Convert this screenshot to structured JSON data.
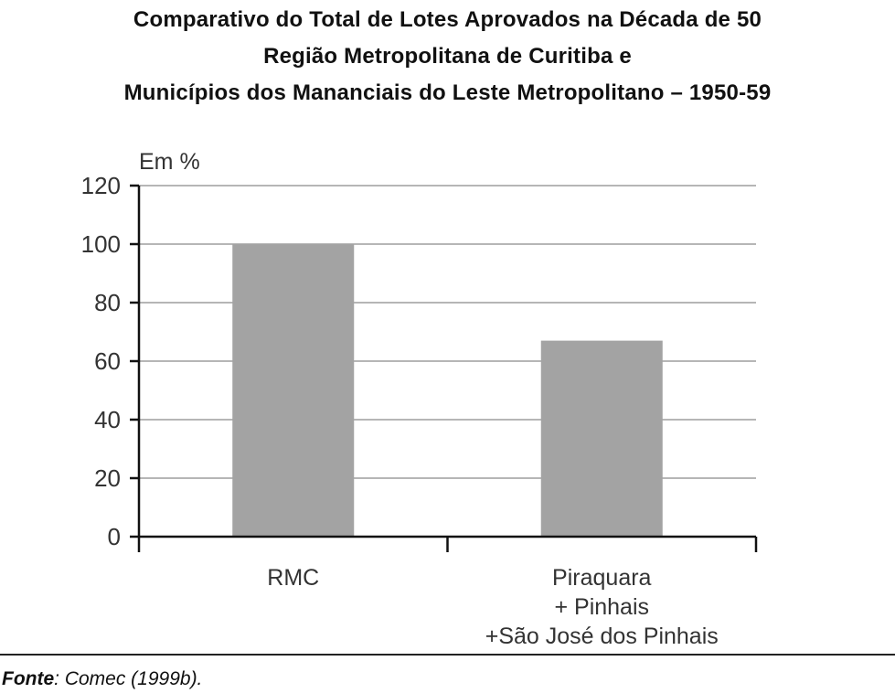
{
  "title_lines": [
    "Comparativo do Total de Lotes Aprovados na Década de 50",
    "Região Metropolitana de Curitiba e",
    "Municípios dos Mananciais do Leste Metropolitano – 1950-59"
  ],
  "chart_data": {
    "type": "bar",
    "title": "Comparativo do Total de Lotes Aprovados na Década de 50 Região Metropolitana de Curitiba e Municípios dos Mananciais do Leste Metropolitano – 1950-59",
    "categories": [
      "RMC",
      "Piraquara + Pinhais +São José dos Pinhais"
    ],
    "category_label_lines": [
      [
        "RMC"
      ],
      [
        "Piraquara",
        "+ Pinhais",
        "+São José dos Pinhais"
      ]
    ],
    "values": [
      100,
      67
    ],
    "ylabel": "Em %",
    "xlabel": "",
    "ylim": [
      0,
      120
    ],
    "yticks": [
      0,
      20,
      40,
      60,
      80,
      100,
      120
    ],
    "grid": true,
    "legend": "none",
    "bar_color": "#a3a3a3",
    "grid_color": "#8a8a8a"
  },
  "source": {
    "label": "Fonte",
    "text": ": Comec (1999b)."
  }
}
